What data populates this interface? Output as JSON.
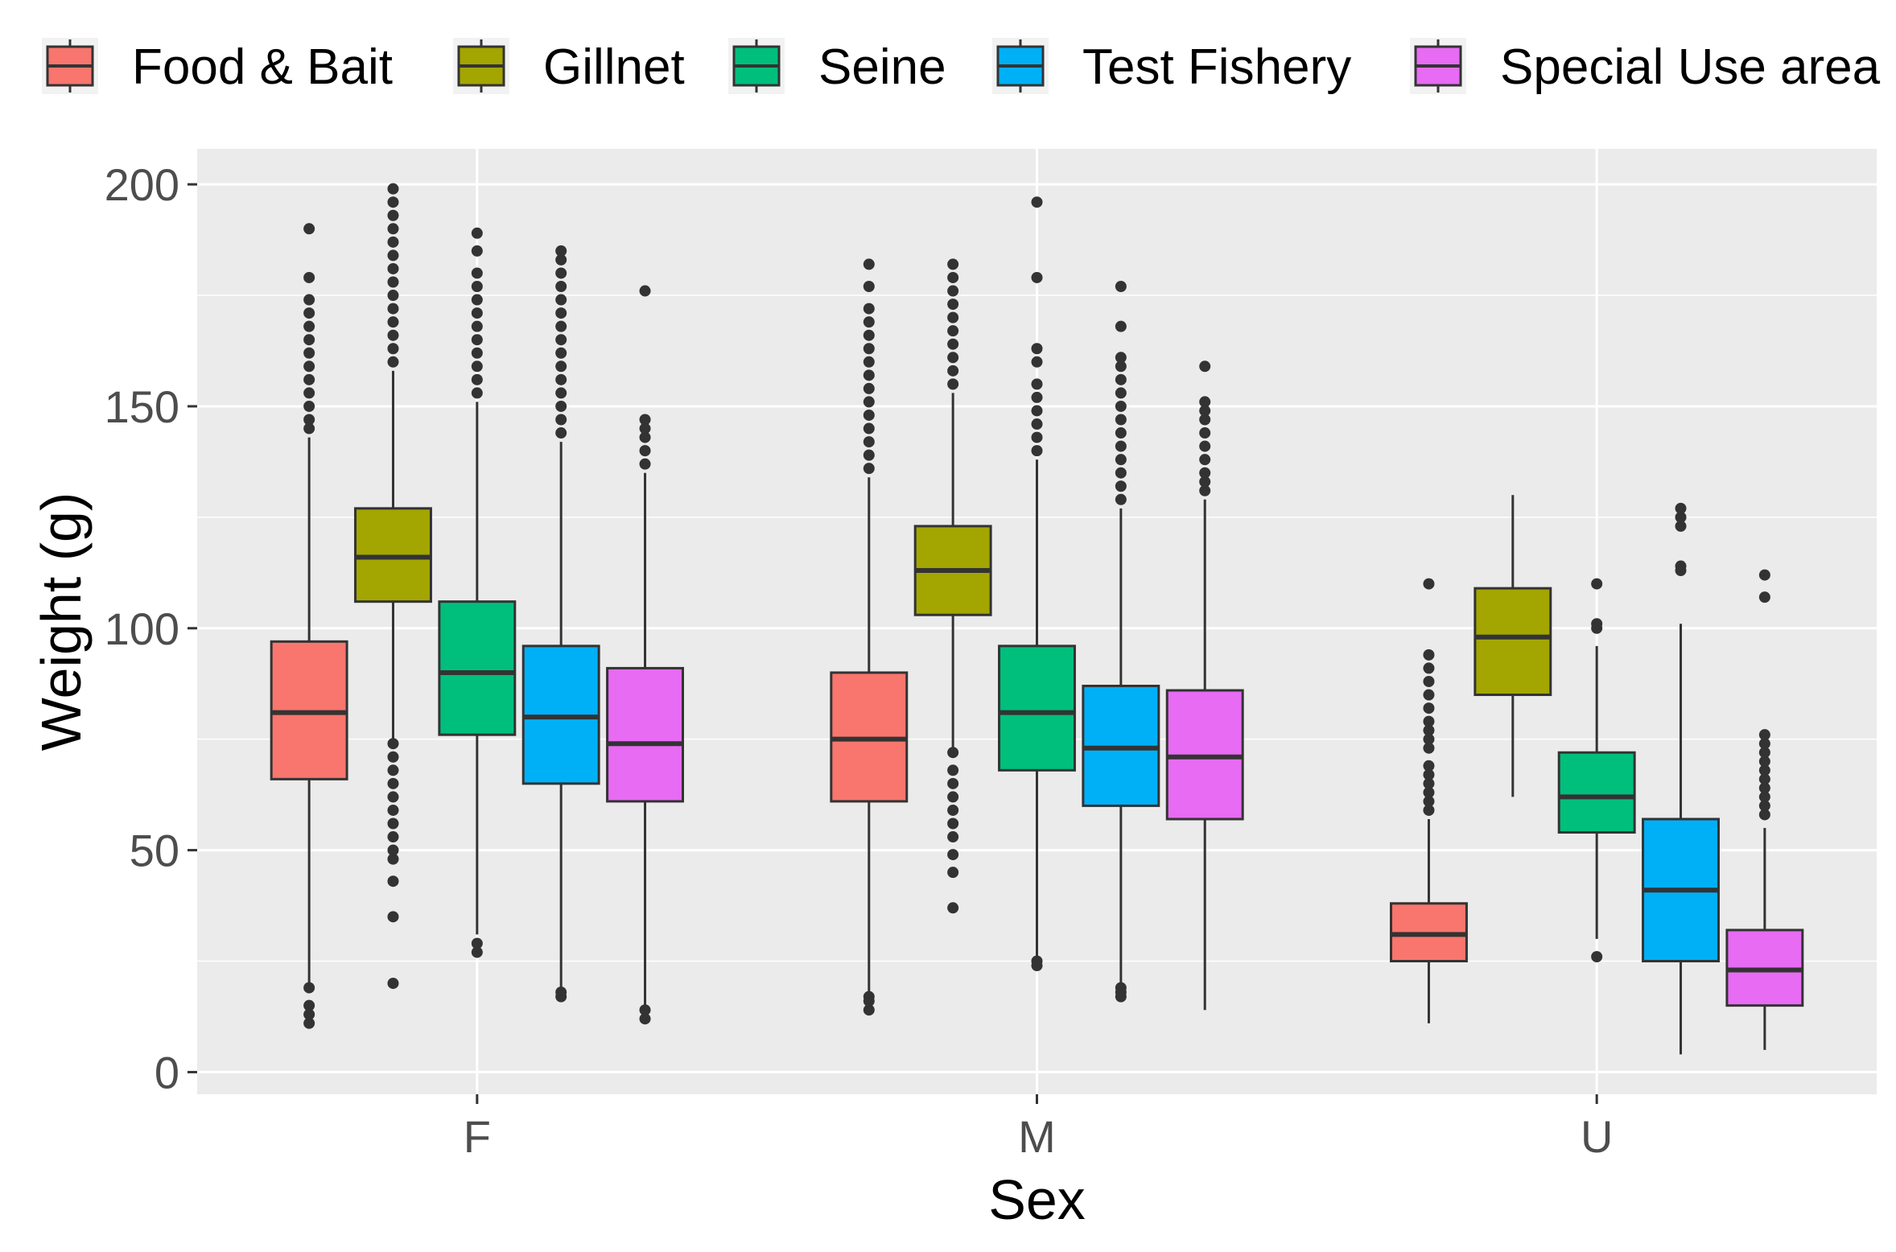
{
  "chart_data": {
    "type": "box",
    "xlabel": "Sex",
    "ylabel": "Weight (g)",
    "categories": [
      "F",
      "M",
      "U"
    ],
    "ylim": [
      -5,
      208
    ],
    "yticks": [
      0,
      50,
      100,
      150,
      200
    ],
    "grid": true,
    "legend_position": "top",
    "series": [
      {
        "name": "Food & Bait",
        "color": "#F8766D",
        "boxes": [
          {
            "q1": 66,
            "median": 81,
            "q3": 97,
            "whisker_low": 20,
            "whisker_high": 143,
            "outliers_low": [
              11,
              13,
              15,
              19
            ],
            "outliers_high": [
              145,
              147,
              150,
              153,
              156,
              159,
              162,
              165,
              168,
              171,
              174,
              179,
              190
            ]
          },
          {
            "q1": 61,
            "median": 75,
            "q3": 90,
            "whisker_low": 18,
            "whisker_high": 134,
            "outliers_low": [
              14,
              16,
              17
            ],
            "outliers_high": [
              136,
              139,
              142,
              145,
              148,
              151,
              154,
              157,
              160,
              163,
              166,
              169,
              172,
              177,
              182
            ]
          },
          {
            "q1": 25,
            "median": 31,
            "q3": 38,
            "whisker_low": 11,
            "whisker_high": 57,
            "outliers_low": [],
            "outliers_high": [
              59,
              61,
              63,
              65,
              67,
              69,
              73,
              75,
              77,
              79,
              82,
              85,
              88,
              91,
              94,
              110
            ]
          }
        ]
      },
      {
        "name": "Gillnet",
        "color": "#A3A500",
        "boxes": [
          {
            "q1": 106,
            "median": 116,
            "q3": 127,
            "whisker_low": 75,
            "whisker_high": 158,
            "outliers_low": [
              20,
              35,
              43,
              48,
              50,
              53,
              56,
              59,
              62,
              65,
              68,
              71,
              74
            ],
            "outliers_high": [
              160,
              163,
              166,
              169,
              172,
              175,
              178,
              181,
              184,
              187,
              190,
              193,
              196,
              199
            ]
          },
          {
            "q1": 103,
            "median": 113,
            "q3": 123,
            "whisker_low": 73,
            "whisker_high": 153,
            "outliers_low": [
              37,
              45,
              49,
              53,
              56,
              59,
              62,
              65,
              68,
              72
            ],
            "outliers_high": [
              155,
              158,
              161,
              164,
              167,
              170,
              173,
              176,
              179,
              182
            ]
          },
          {
            "q1": 85,
            "median": 98,
            "q3": 109,
            "whisker_low": 62,
            "whisker_high": 130,
            "outliers_low": [],
            "outliers_high": []
          }
        ]
      },
      {
        "name": "Seine",
        "color": "#00BF7D",
        "boxes": [
          {
            "q1": 76,
            "median": 90,
            "q3": 106,
            "whisker_low": 31,
            "whisker_high": 151,
            "outliers_low": [
              27,
              29
            ],
            "outliers_high": [
              153,
              156,
              159,
              162,
              165,
              168,
              171,
              174,
              177,
              180,
              185,
              189
            ]
          },
          {
            "q1": 68,
            "median": 81,
            "q3": 96,
            "whisker_low": 26,
            "whisker_high": 138,
            "outliers_low": [
              24,
              25
            ],
            "outliers_high": [
              140,
              143,
              146,
              149,
              152,
              155,
              160,
              163,
              179,
              196
            ]
          },
          {
            "q1": 54,
            "median": 62,
            "q3": 72,
            "whisker_low": 30,
            "whisker_high": 96,
            "outliers_low": [
              26
            ],
            "outliers_high": [
              100,
              101,
              110
            ]
          }
        ]
      },
      {
        "name": "Test Fishery",
        "color": "#00B0F6",
        "boxes": [
          {
            "q1": 65,
            "median": 80,
            "q3": 96,
            "whisker_low": 19,
            "whisker_high": 142,
            "outliers_low": [
              17,
              18
            ],
            "outliers_high": [
              144,
              147,
              150,
              153,
              156,
              159,
              162,
              165,
              168,
              171,
              174,
              177,
              180,
              183,
              185
            ]
          },
          {
            "q1": 60,
            "median": 73,
            "q3": 87,
            "whisker_low": 20,
            "whisker_high": 127,
            "outliers_low": [
              17,
              18,
              19
            ],
            "outliers_high": [
              129,
              132,
              135,
              138,
              141,
              144,
              147,
              150,
              153,
              156,
              159,
              161,
              168,
              177
            ]
          },
          {
            "q1": 25,
            "median": 41,
            "q3": 57,
            "whisker_low": 4,
            "whisker_high": 101,
            "outliers_low": [],
            "outliers_high": [
              113,
              114,
              123,
              125,
              127
            ]
          }
        ]
      },
      {
        "name": "Special Use area",
        "color": "#E76BF3",
        "boxes": [
          {
            "q1": 61,
            "median": 74,
            "q3": 91,
            "whisker_low": 15,
            "whisker_high": 135,
            "outliers_low": [
              12,
              14
            ],
            "outliers_high": [
              137,
              140,
              143,
              145,
              147,
              176
            ]
          },
          {
            "q1": 57,
            "median": 71,
            "q3": 86,
            "whisker_low": 14,
            "whisker_high": 129,
            "outliers_low": [],
            "outliers_high": [
              131,
              133,
              135,
              138,
              141,
              144,
              147,
              149,
              151,
              159
            ]
          },
          {
            "q1": 15,
            "median": 23,
            "q3": 32,
            "whisker_low": 5,
            "whisker_high": 55,
            "outliers_low": [],
            "outliers_high": [
              58,
              60,
              62,
              64,
              66,
              68,
              70,
              72,
              74,
              76,
              107,
              112
            ]
          }
        ]
      }
    ]
  }
}
